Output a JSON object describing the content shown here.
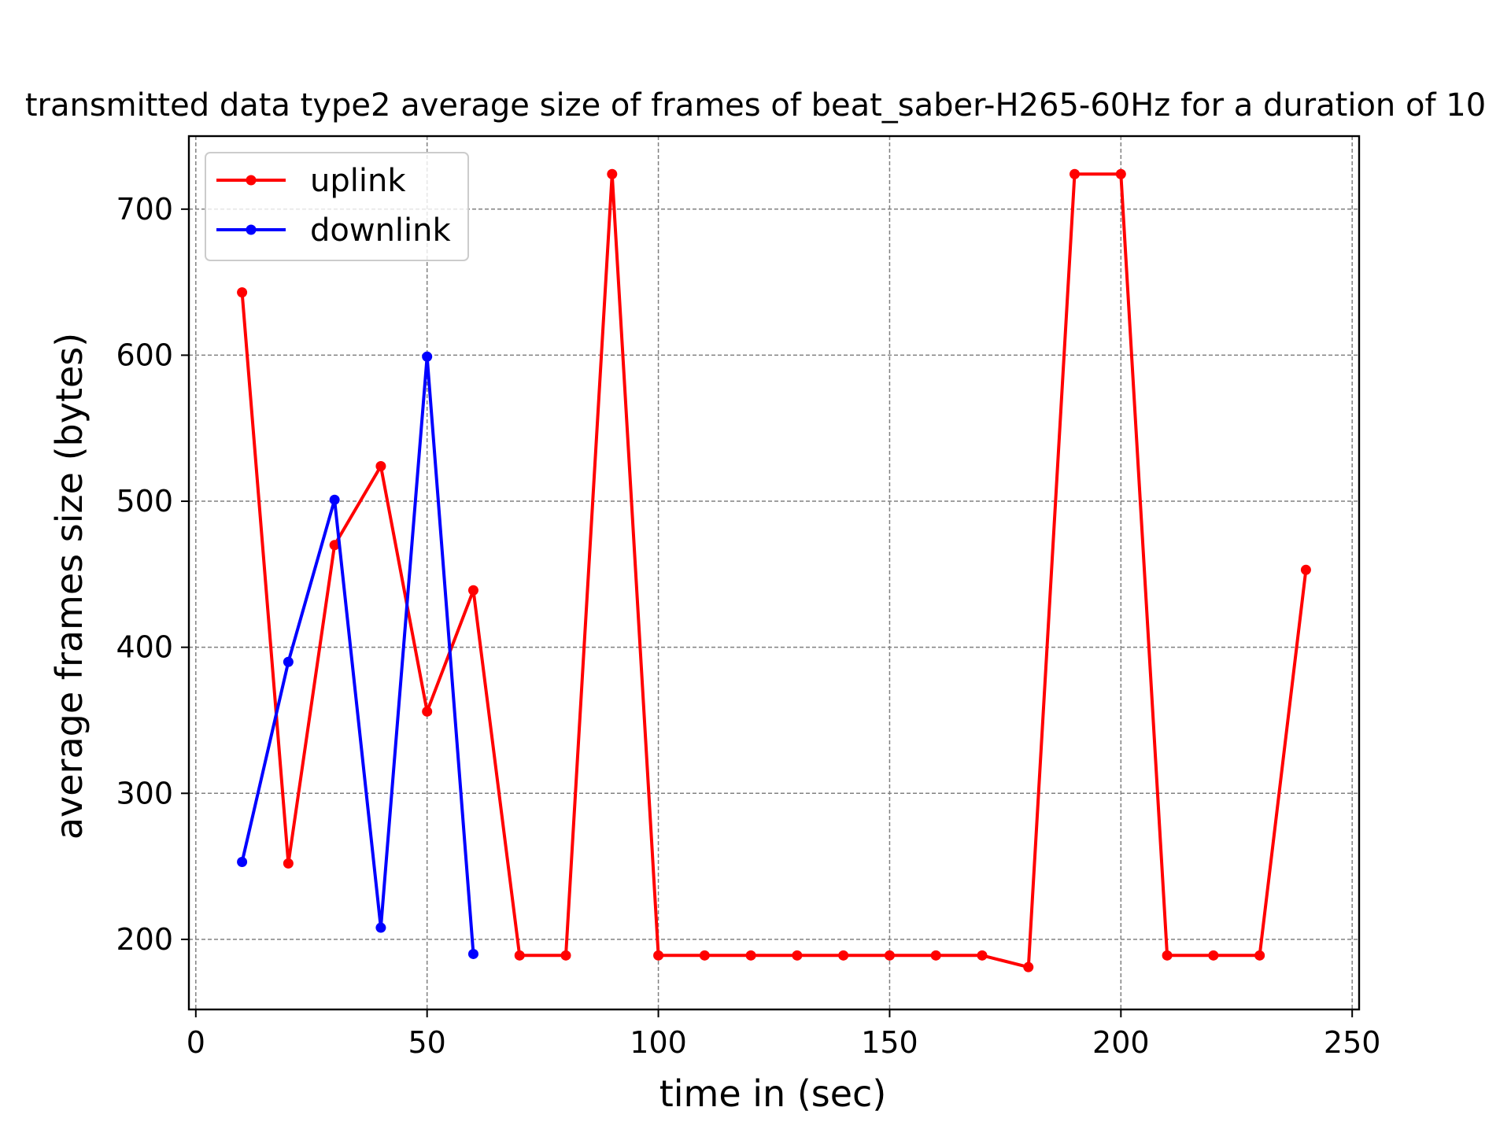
{
  "chart_data": {
    "type": "line",
    "title": "transmitted data type2 average size of frames of beat_saber-H265-60Hz for a duration of 10",
    "xlabel": "time in (sec)",
    "ylabel": "average frames size (bytes)",
    "xlim": [
      -1.5,
      251.5
    ],
    "ylim": [
      152,
      750
    ],
    "xticks": [
      0,
      50,
      100,
      150,
      200,
      250
    ],
    "yticks": [
      200,
      300,
      400,
      500,
      600,
      700
    ],
    "grid": true,
    "legend_position": "top-left",
    "series": [
      {
        "name": "uplink",
        "color": "#ff0000",
        "x": [
          10,
          20,
          30,
          40,
          50,
          60,
          70,
          80,
          90,
          100,
          110,
          120,
          130,
          140,
          150,
          160,
          170,
          180,
          190,
          200,
          210,
          220,
          230,
          240
        ],
        "y": [
          643,
          252,
          470,
          524,
          356,
          439,
          189,
          189,
          724,
          189,
          189,
          189,
          189,
          189,
          189,
          189,
          189,
          181,
          724,
          724,
          189,
          189,
          189,
          453
        ]
      },
      {
        "name": "downlink",
        "color": "#0000ff",
        "x": [
          10,
          20,
          30,
          40,
          50,
          60
        ],
        "y": [
          253,
          390,
          501,
          208,
          599,
          190
        ]
      }
    ]
  }
}
